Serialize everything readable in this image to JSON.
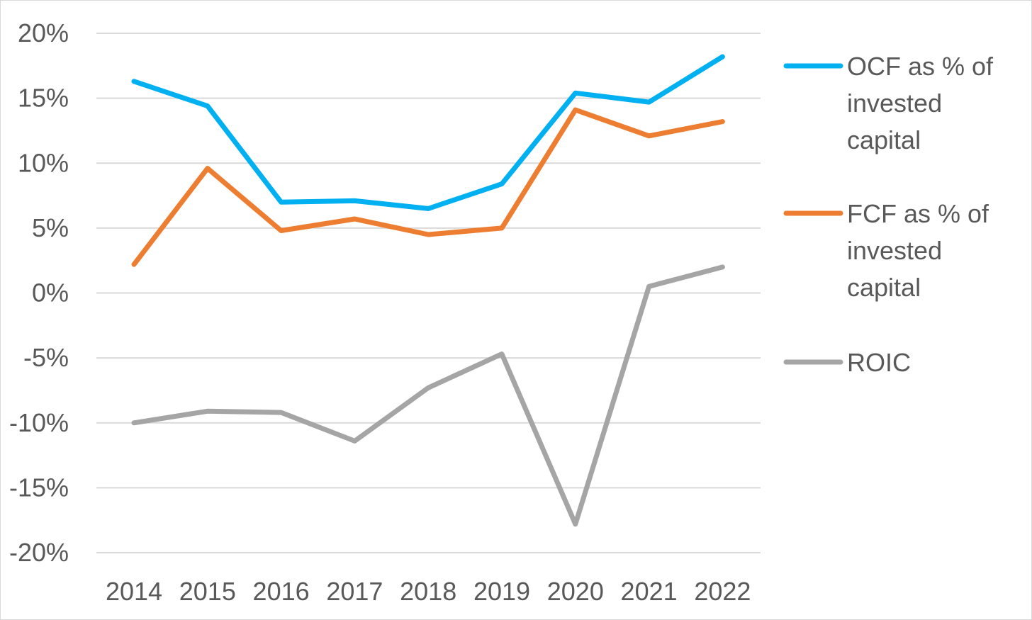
{
  "chart_data": {
    "type": "line",
    "title": "",
    "xlabel": "",
    "ylabel": "",
    "categories": [
      "2014",
      "2015",
      "2016",
      "2017",
      "2018",
      "2019",
      "2020",
      "2021",
      "2022"
    ],
    "ylim": [
      -20,
      20
    ],
    "yticks": [
      20,
      15,
      10,
      5,
      0,
      -5,
      -10,
      -15,
      -20
    ],
    "ytick_labels": [
      "20%",
      "15%",
      "10%",
      "5%",
      "0%",
      "-5%",
      "-10%",
      "-15%",
      "-20%"
    ],
    "grid": true,
    "legend_position": "right",
    "series": [
      {
        "name": "OCF as % of invested capital",
        "legend_lines": [
          "OCF as % of",
          "invested",
          "capital"
        ],
        "color": "#00b0f0",
        "values": [
          16.3,
          14.4,
          7.0,
          7.1,
          6.5,
          8.4,
          15.4,
          14.7,
          18.2
        ]
      },
      {
        "name": "FCF as % of invested capital",
        "legend_lines": [
          "FCF as % of",
          "invested",
          "capital"
        ],
        "color": "#ed7d31",
        "values": [
          2.2,
          9.6,
          4.8,
          5.7,
          4.5,
          5.0,
          14.1,
          12.1,
          13.2
        ]
      },
      {
        "name": "ROIC",
        "legend_lines": [
          "ROIC"
        ],
        "color": "#a5a5a5",
        "values": [
          -10.0,
          -9.1,
          -9.2,
          -11.4,
          -7.3,
          -4.7,
          -17.8,
          0.5,
          2.0
        ]
      }
    ]
  }
}
